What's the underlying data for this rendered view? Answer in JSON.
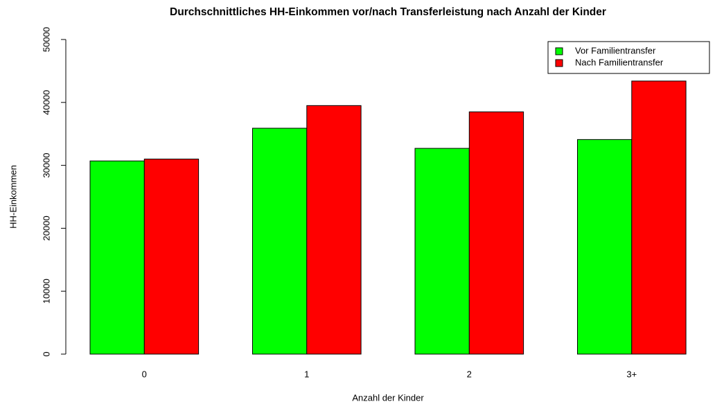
{
  "chart_data": {
    "type": "bar",
    "title": "Durchschnittliches HH-Einkommen vor/nach Transferleistung nach Anzahl der Kinder",
    "x_label": "Anzahl der Kinder",
    "y_label": "HH-Einkommen",
    "categories": [
      "0",
      "1",
      "2",
      "3+"
    ],
    "series": [
      {
        "name": "Vor Familientransfer",
        "color": "#00ff00",
        "values": [
          30700,
          35900,
          32700,
          34100
        ]
      },
      {
        "name": "Nach Familientransfer",
        "color": "#ff0000",
        "values": [
          31000,
          39500,
          38500,
          43400
        ]
      }
    ],
    "ylim": [
      0,
      50000
    ],
    "yticks": [
      0,
      10000,
      20000,
      30000,
      40000,
      50000
    ],
    "legend": "top-right"
  }
}
